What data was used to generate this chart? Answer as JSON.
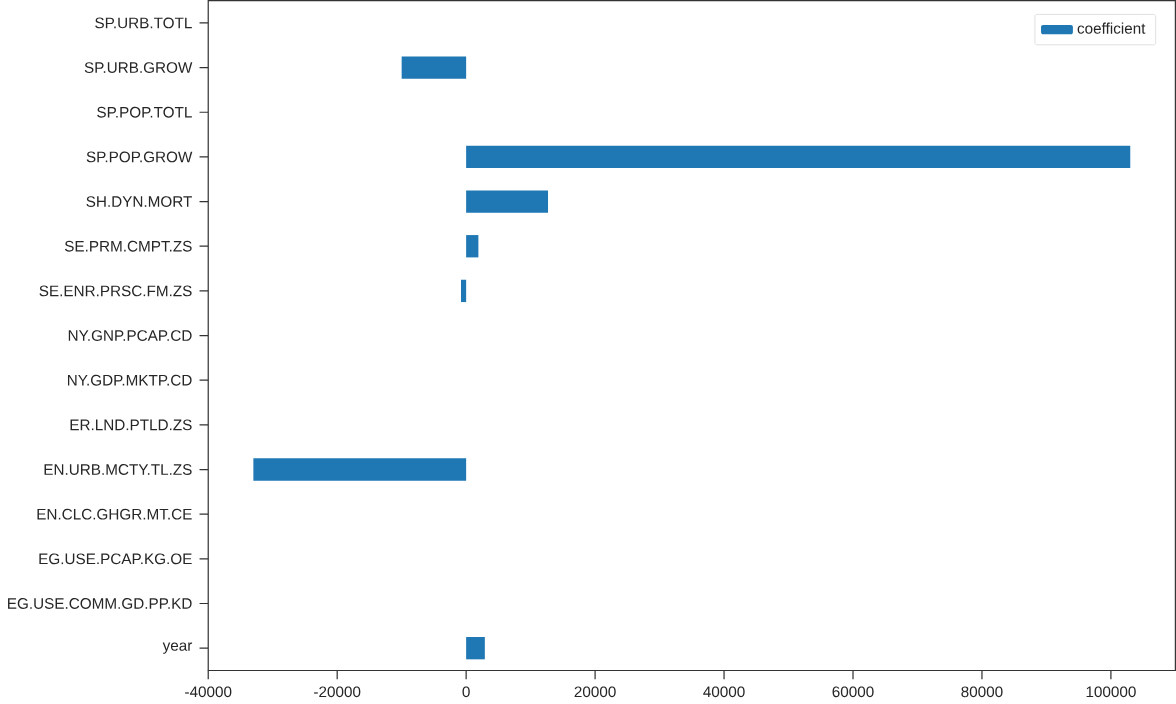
{
  "chart_data": {
    "type": "bar",
    "orientation": "horizontal",
    "categories": [
      "SP.URB.TOTL",
      "SP.URB.GROW",
      "SP.POP.TOTL",
      "SP.POP.GROW",
      "SH.DYN.MORT",
      "SE.PRM.CMPT.ZS",
      "SE.ENR.PRSC.FM.ZS",
      "NY.GNP.PCAP.CD",
      "NY.GDP.MKTP.CD",
      "ER.LND.PTLD.ZS",
      "EN.URB.MCTY.TL.ZS",
      "EN.CLC.GHGR.MT.CE",
      "EG.USE.PCAP.KG.OE",
      "EG.USE.COMM.GD.PP.KD",
      "year"
    ],
    "series": [
      {
        "name": "coefficient",
        "color": "#1f77b4",
        "values": [
          0,
          -10000,
          0,
          103000,
          12700,
          1900,
          -800,
          0,
          0,
          0,
          -33000,
          0,
          0,
          0,
          2900
        ]
      }
    ],
    "xlim": [
      -40000,
      110000
    ],
    "xticks": [
      -40000,
      -20000,
      0,
      20000,
      40000,
      60000,
      80000,
      100000
    ],
    "grid": false,
    "legend": "top right"
  }
}
